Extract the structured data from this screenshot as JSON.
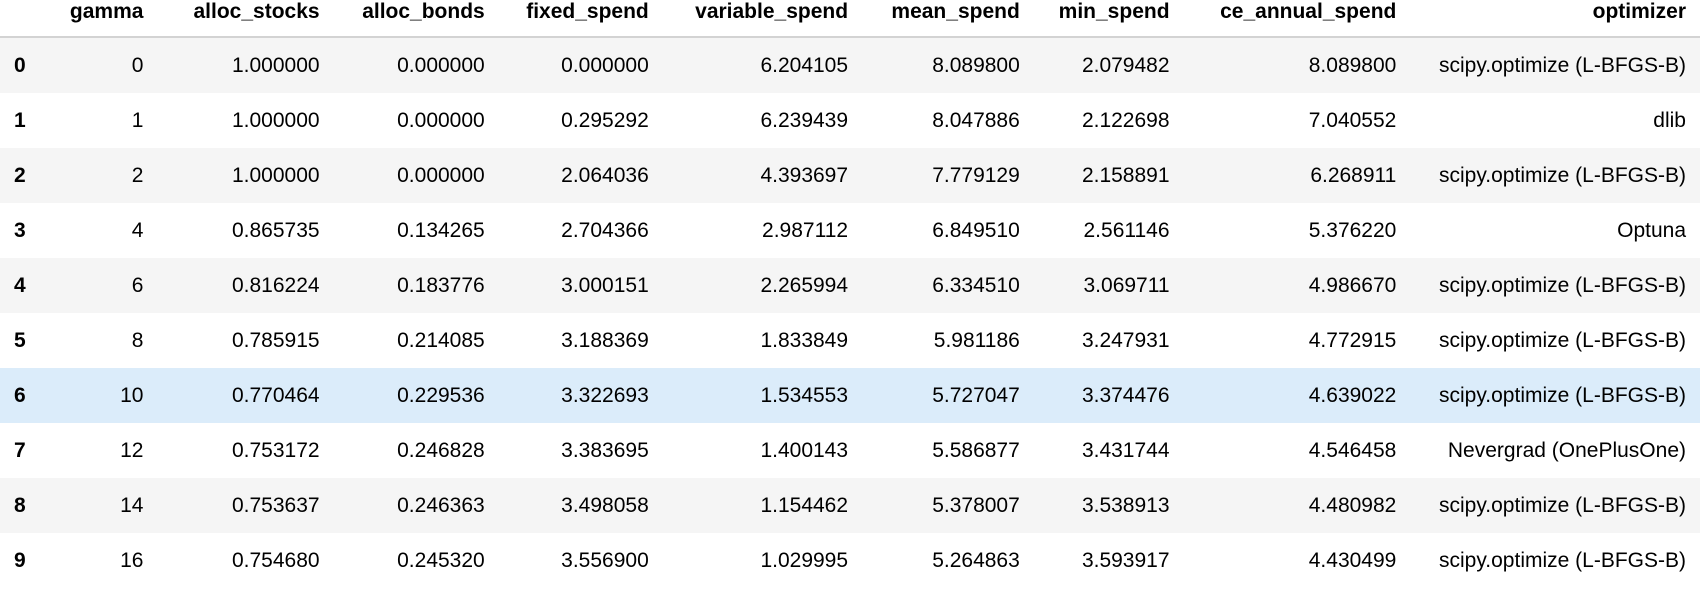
{
  "table": {
    "columns": [
      "",
      "gamma",
      "alloc_stocks",
      "alloc_bonds",
      "fixed_spend",
      "variable_spend",
      "mean_spend",
      "min_spend",
      "ce_annual_spend",
      "optimizer"
    ],
    "rows": [
      {
        "index": "0",
        "gamma": "0",
        "alloc_stocks": "1.000000",
        "alloc_bonds": "0.000000",
        "fixed_spend": "0.000000",
        "variable_spend": "6.204105",
        "mean_spend": "8.089800",
        "min_spend": "2.079482",
        "ce_annual_spend": "8.089800",
        "optimizer": "scipy.optimize (L-BFGS-B)"
      },
      {
        "index": "1",
        "gamma": "1",
        "alloc_stocks": "1.000000",
        "alloc_bonds": "0.000000",
        "fixed_spend": "0.295292",
        "variable_spend": "6.239439",
        "mean_spend": "8.047886",
        "min_spend": "2.122698",
        "ce_annual_spend": "7.040552",
        "optimizer": "dlib"
      },
      {
        "index": "2",
        "gamma": "2",
        "alloc_stocks": "1.000000",
        "alloc_bonds": "0.000000",
        "fixed_spend": "2.064036",
        "variable_spend": "4.393697",
        "mean_spend": "7.779129",
        "min_spend": "2.158891",
        "ce_annual_spend": "6.268911",
        "optimizer": "scipy.optimize (L-BFGS-B)"
      },
      {
        "index": "3",
        "gamma": "4",
        "alloc_stocks": "0.865735",
        "alloc_bonds": "0.134265",
        "fixed_spend": "2.704366",
        "variable_spend": "2.987112",
        "mean_spend": "6.849510",
        "min_spend": "2.561146",
        "ce_annual_spend": "5.376220",
        "optimizer": "Optuna"
      },
      {
        "index": "4",
        "gamma": "6",
        "alloc_stocks": "0.816224",
        "alloc_bonds": "0.183776",
        "fixed_spend": "3.000151",
        "variable_spend": "2.265994",
        "mean_spend": "6.334510",
        "min_spend": "3.069711",
        "ce_annual_spend": "4.986670",
        "optimizer": "scipy.optimize (L-BFGS-B)"
      },
      {
        "index": "5",
        "gamma": "8",
        "alloc_stocks": "0.785915",
        "alloc_bonds": "0.214085",
        "fixed_spend": "3.188369",
        "variable_spend": "1.833849",
        "mean_spend": "5.981186",
        "min_spend": "3.247931",
        "ce_annual_spend": "4.772915",
        "optimizer": "scipy.optimize (L-BFGS-B)"
      },
      {
        "index": "6",
        "gamma": "10",
        "alloc_stocks": "0.770464",
        "alloc_bonds": "0.229536",
        "fixed_spend": "3.322693",
        "variable_spend": "1.534553",
        "mean_spend": "5.727047",
        "min_spend": "3.374476",
        "ce_annual_spend": "4.639022",
        "optimizer": "scipy.optimize (L-BFGS-B)"
      },
      {
        "index": "7",
        "gamma": "12",
        "alloc_stocks": "0.753172",
        "alloc_bonds": "0.246828",
        "fixed_spend": "3.383695",
        "variable_spend": "1.400143",
        "mean_spend": "5.586877",
        "min_spend": "3.431744",
        "ce_annual_spend": "4.546458",
        "optimizer": "Nevergrad (OnePlusOne)"
      },
      {
        "index": "8",
        "gamma": "14",
        "alloc_stocks": "0.753637",
        "alloc_bonds": "0.246363",
        "fixed_spend": "3.498058",
        "variable_spend": "1.154462",
        "mean_spend": "5.378007",
        "min_spend": "3.538913",
        "ce_annual_spend": "4.480982",
        "optimizer": "scipy.optimize (L-BFGS-B)"
      },
      {
        "index": "9",
        "gamma": "16",
        "alloc_stocks": "0.754680",
        "alloc_bonds": "0.245320",
        "fixed_spend": "3.556900",
        "variable_spend": "1.029995",
        "mean_spend": "5.264863",
        "min_spend": "3.593917",
        "ce_annual_spend": "4.430499",
        "optimizer": "scipy.optimize (L-BFGS-B)"
      }
    ],
    "highlighted_row": 6,
    "colors": {
      "stripe": "#f5f5f5",
      "hover": "#dbecfa",
      "header_border": "#d3d3d3"
    }
  }
}
